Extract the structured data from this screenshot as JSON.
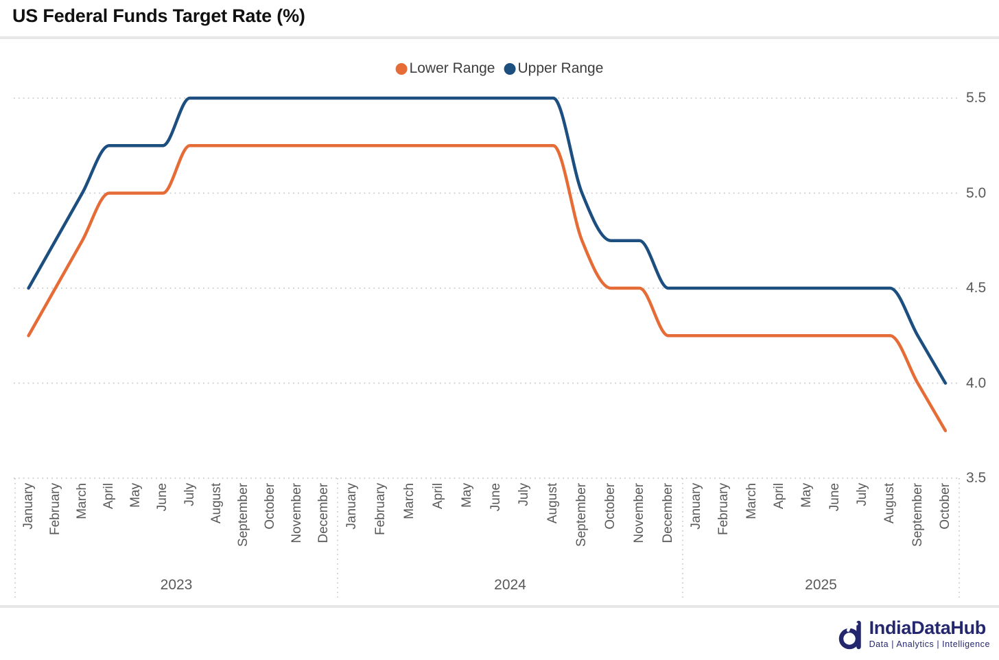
{
  "title": "US Federal Funds Target Rate (%)",
  "footer": {
    "brand": "IndiaDataHub",
    "tagline": "Data | Analytics | Intelligence",
    "brand_color": "#24276D"
  },
  "colors": {
    "grid": "#C9C9C9",
    "axis_text": "#595959",
    "legend_text": "#3D3D3D"
  },
  "chart_data": {
    "type": "line",
    "title": "US Federal Funds Target Rate (%)",
    "unit": "%",
    "legend_position": "top-center",
    "grid": "dotted-horizontal",
    "ylim": [
      3.5,
      5.5
    ],
    "yticks": [
      5.5,
      5.0,
      4.5,
      4.0,
      3.5
    ],
    "x_years": [
      {
        "label": "2023",
        "months": [
          "January",
          "February",
          "March",
          "April",
          "May",
          "June",
          "July",
          "August",
          "September",
          "October",
          "November",
          "December"
        ]
      },
      {
        "label": "2024",
        "months": [
          "January",
          "February",
          "March",
          "April",
          "May",
          "June",
          "July",
          "August",
          "September",
          "October",
          "November",
          "December"
        ]
      },
      {
        "label": "2025",
        "months": [
          "January",
          "February",
          "March",
          "April",
          "May",
          "June",
          "July",
          "August",
          "September",
          "October"
        ]
      }
    ],
    "series": [
      {
        "name": "Lower Range",
        "color": "#E66C37",
        "values": [
          4.25,
          4.5,
          4.75,
          5.0,
          5.0,
          5.0,
          5.25,
          5.25,
          5.25,
          5.25,
          5.25,
          5.25,
          5.25,
          5.25,
          5.25,
          5.25,
          5.25,
          5.25,
          5.25,
          5.25,
          4.75,
          4.5,
          4.5,
          4.25,
          4.25,
          4.25,
          4.25,
          4.25,
          4.25,
          4.25,
          4.25,
          4.25,
          4.0,
          3.75
        ]
      },
      {
        "name": "Upper Range",
        "color": "#1C4E80",
        "values": [
          4.5,
          4.75,
          5.0,
          5.25,
          5.25,
          5.25,
          5.5,
          5.5,
          5.5,
          5.5,
          5.5,
          5.5,
          5.5,
          5.5,
          5.5,
          5.5,
          5.5,
          5.5,
          5.5,
          5.5,
          5.0,
          4.75,
          4.75,
          4.5,
          4.5,
          4.5,
          4.5,
          4.5,
          4.5,
          4.5,
          4.5,
          4.5,
          4.25,
          4.0
        ]
      }
    ]
  }
}
